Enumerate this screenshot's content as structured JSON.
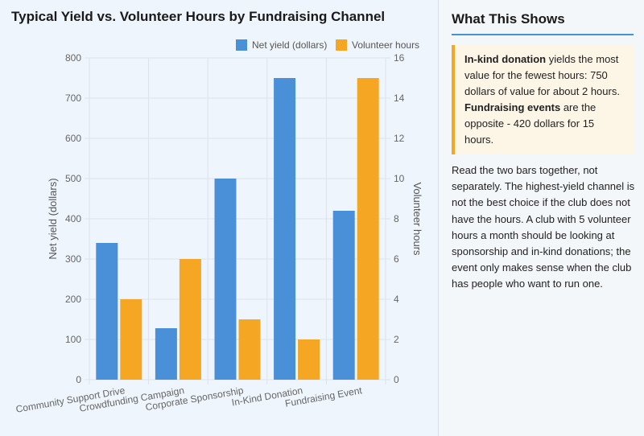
{
  "chart_title": "Typical Yield vs. Volunteer Hours by Fundraising Channel",
  "colors": {
    "yield": "#4a90d9",
    "hours": "#f5a623",
    "grid": "#dde3ea"
  },
  "chart_data": {
    "type": "bar",
    "title": "Typical Yield vs. Volunteer Hours by Fundraising Channel",
    "categories": [
      "Community Support Drive",
      "Crowdfunding Campaign",
      "Corporate Sponsorship",
      "In-Kind Donation",
      "Fundraising Event"
    ],
    "series": [
      {
        "name": "Net yield (dollars)",
        "axis": "left",
        "values": [
          340,
          128,
          500,
          750,
          420
        ]
      },
      {
        "name": "Volunteer hours",
        "axis": "right",
        "values": [
          4,
          6,
          3,
          2,
          15
        ]
      }
    ],
    "ylabel": "Net yield (dollars)",
    "ylabel_right": "Volunteer hours",
    "ylim": [
      0,
      800
    ],
    "ylim_right": [
      0,
      16
    ],
    "yticks": [
      "0",
      "100",
      "200",
      "300",
      "400",
      "500",
      "600",
      "700",
      "800"
    ],
    "yticks_right": [
      "0",
      "2",
      "4",
      "6",
      "8",
      "10",
      "12",
      "14",
      "16"
    ],
    "grid": true,
    "legend": "top-right"
  },
  "side": {
    "title": "What This Shows",
    "callout": {
      "lead1": "In-kind donation",
      "text1": " yields the most value for the fewest hours: 750 dollars of value for about 2 hours. ",
      "lead2": "Fundraising events",
      "text2": " are the opposite - 420 dollars for 15 hours."
    },
    "body": "Read the two bars together, not separately. The highest-yield channel is not the best choice if the club does not have the hours. A club with 5 volunteer hours a month should be looking at sponsorship and in-kind donations; the event only makes sense when the club has people who want to run one."
  }
}
